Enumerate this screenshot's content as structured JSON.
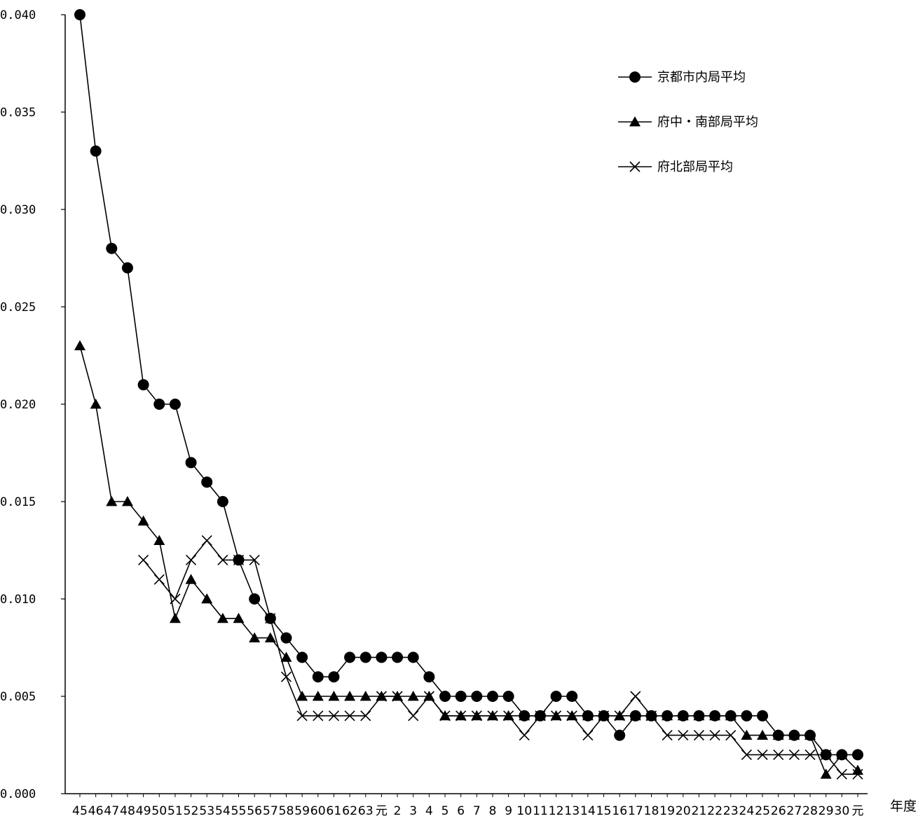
{
  "chart_data": {
    "type": "line",
    "xlabel": "年度",
    "ylabel": "",
    "ylim": [
      0,
      0.04
    ],
    "yticks": [
      "0.000",
      "0.005",
      "0.010",
      "0.015",
      "0.020",
      "0.025",
      "0.030",
      "0.035",
      "0.040"
    ],
    "grid": false,
    "legend_position": "top-right",
    "categories": [
      "45",
      "46",
      "47",
      "48",
      "49",
      "50",
      "51",
      "52",
      "53",
      "54",
      "55",
      "56",
      "57",
      "58",
      "59",
      "60",
      "61",
      "62",
      "63",
      "元",
      "2",
      "3",
      "4",
      "5",
      "6",
      "7",
      "8",
      "9",
      "10",
      "11",
      "12",
      "13",
      "14",
      "15",
      "16",
      "17",
      "18",
      "19",
      "20",
      "21",
      "22",
      "23",
      "24",
      "25",
      "26",
      "27",
      "28",
      "29",
      "30",
      "元"
    ],
    "series": [
      {
        "name": "京都市内局平均",
        "marker": "circle",
        "values": [
          0.04,
          0.033,
          0.028,
          0.027,
          0.021,
          0.02,
          0.02,
          0.017,
          0.016,
          0.015,
          0.012,
          0.01,
          0.009,
          0.008,
          0.007,
          0.006,
          0.006,
          0.007,
          0.007,
          0.007,
          0.007,
          0.007,
          0.006,
          0.005,
          0.005,
          0.005,
          0.005,
          0.005,
          0.004,
          0.004,
          0.005,
          0.005,
          0.004,
          0.004,
          0.003,
          0.004,
          0.004,
          0.004,
          0.004,
          0.004,
          0.004,
          0.004,
          0.004,
          0.004,
          0.003,
          0.003,
          0.003,
          0.002,
          0.002,
          0.002
        ]
      },
      {
        "name": "府中・南部局平均",
        "marker": "triangle",
        "values": [
          0.023,
          0.02,
          0.015,
          0.015,
          0.014,
          0.013,
          0.009,
          0.011,
          0.01,
          0.009,
          0.009,
          0.008,
          0.008,
          0.007,
          0.005,
          0.005,
          0.005,
          0.005,
          0.005,
          0.005,
          0.005,
          0.005,
          0.005,
          0.004,
          0.004,
          0.004,
          0.004,
          0.004,
          0.004,
          0.004,
          0.004,
          0.004,
          0.004,
          0.004,
          0.004,
          0.004,
          0.004,
          0.004,
          0.004,
          0.004,
          0.004,
          0.004,
          0.003,
          0.003,
          0.003,
          0.003,
          0.003,
          0.001,
          0.002,
          0.0012
        ]
      },
      {
        "name": "府北部局平均",
        "marker": "x",
        "values": [
          null,
          null,
          null,
          null,
          0.012,
          0.011,
          0.01,
          0.012,
          0.013,
          0.012,
          0.012,
          0.012,
          0.009,
          0.006,
          0.004,
          0.004,
          0.004,
          0.004,
          0.004,
          0.005,
          0.005,
          0.004,
          0.005,
          0.004,
          0.004,
          0.004,
          0.004,
          0.004,
          0.003,
          0.004,
          0.004,
          0.004,
          0.003,
          0.004,
          0.004,
          0.005,
          0.004,
          0.003,
          0.003,
          0.003,
          0.003,
          0.003,
          0.002,
          0.002,
          0.002,
          0.002,
          0.002,
          0.002,
          0.001,
          0.001
        ]
      }
    ]
  }
}
